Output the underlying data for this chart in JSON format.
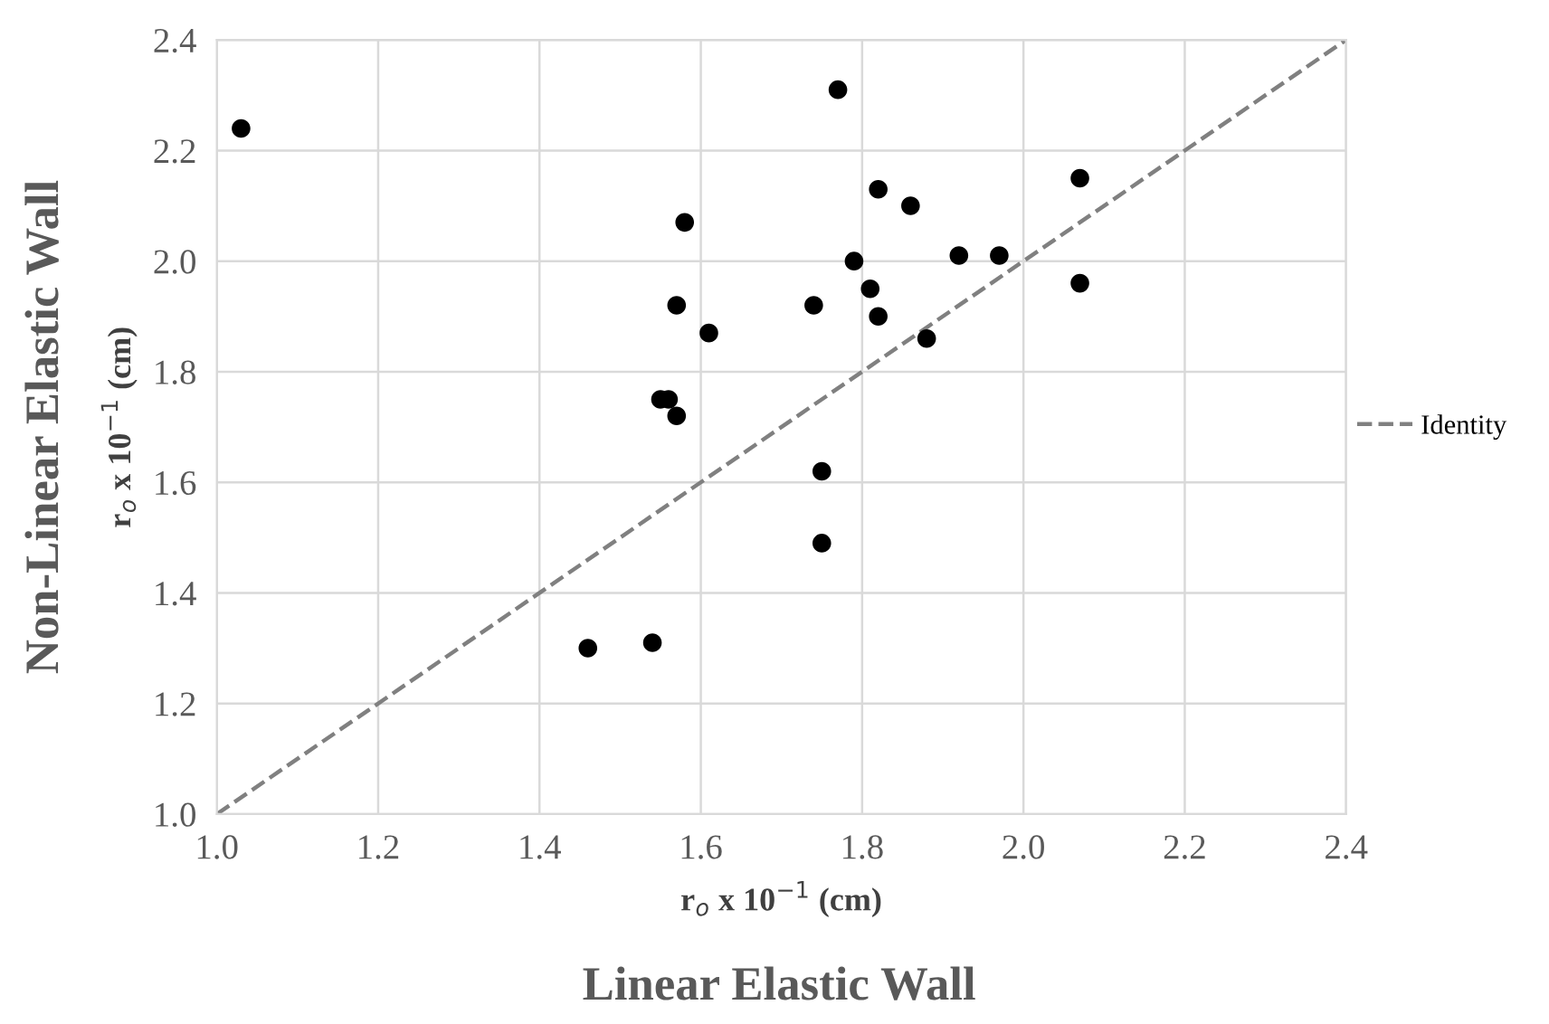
{
  "chart_data": {
    "type": "scatter",
    "xlabel": "r$_{o}$ x 10$^{−1}$ (cm)",
    "ylabel": "r$_{o}$ x 10$^{−1}$ (cm)",
    "annotations": [
      "Linear Elastic Wall",
      "Non-Linear Elastic Wall"
    ],
    "series": [
      {
        "color": "#000000",
        "marker": "circle",
        "x": [
          1.03,
          1.77,
          1.58,
          1.79,
          1.57,
          1.61,
          1.74,
          1.55,
          1.56,
          1.57,
          1.75,
          1.82,
          1.86,
          2.07,
          1.81,
          1.82,
          1.92,
          1.97,
          2.07,
          1.88,
          1.75,
          1.46,
          1.54
        ],
        "values": [
          2.24,
          2.31,
          2.07,
          2.0,
          1.92,
          1.87,
          1.92,
          1.75,
          1.75,
          1.72,
          1.62,
          2.13,
          2.1,
          2.15,
          1.95,
          1.9,
          2.01,
          2.01,
          1.96,
          1.86,
          1.49,
          1.3,
          1.31
        ]
      },
      {
        "type": "line",
        "name": "Identity",
        "color": "#808080",
        "line_style": "dashed",
        "marker": "none",
        "x": [
          1.0,
          2.4
        ],
        "values": [
          1.0,
          2.4
        ]
      }
    ],
    "xlim": [
      1.0,
      2.4
    ],
    "ylim": [
      1.0,
      2.4
    ],
    "xticks": [
      {
        "value": 1.0,
        "label": "1.0"
      },
      {
        "value": 1.2,
        "label": "1.2"
      },
      {
        "value": 1.4,
        "label": "1.4"
      },
      {
        "value": 1.6,
        "label": "1.6"
      },
      {
        "value": 1.8,
        "label": "1.8"
      },
      {
        "value": 2.0,
        "label": "2.0"
      },
      {
        "value": 2.2,
        "label": "2.2"
      },
      {
        "value": 2.4,
        "label": "2.4"
      }
    ],
    "yticks": [
      {
        "value": 1.0,
        "label": "1.0"
      },
      {
        "value": 1.2,
        "label": "1.2"
      },
      {
        "value": 1.4,
        "label": "1.4"
      },
      {
        "value": 1.6,
        "label": "1.6"
      },
      {
        "value": 1.8,
        "label": "1.8"
      },
      {
        "value": 2.0,
        "label": "2.0"
      },
      {
        "value": 2.2,
        "label": "2.2"
      },
      {
        "value": 2.4,
        "label": "2.4"
      }
    ],
    "grid": true,
    "legend": "right"
  }
}
